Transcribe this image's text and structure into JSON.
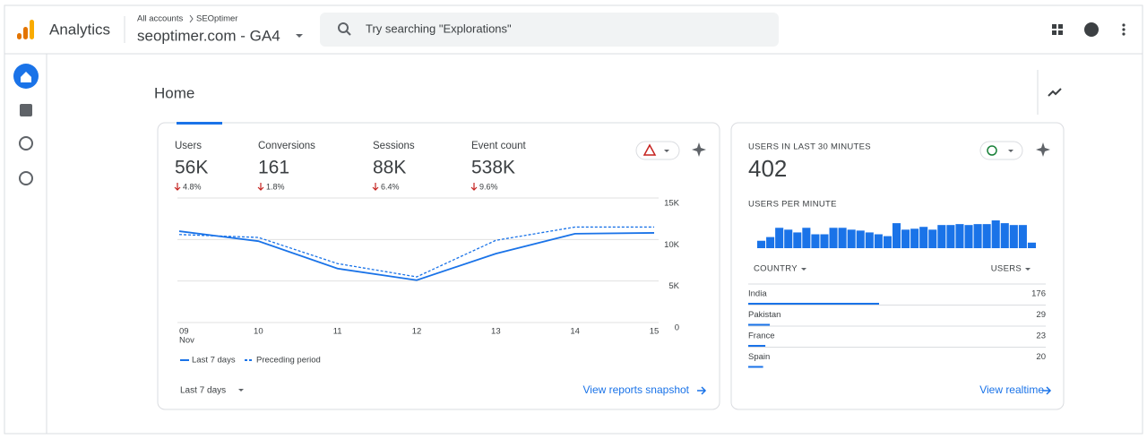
{
  "header": {
    "app_name": "Analytics",
    "breadcrumb": [
      "All accounts",
      "SEOptimer"
    ],
    "property": "seoptimer.com - GA4",
    "search_placeholder": "Try searching \"Explorations\""
  },
  "page_title": "Home",
  "overview": {
    "metrics": [
      {
        "label": "Users",
        "value": "56K",
        "change": "4.8%"
      },
      {
        "label": "Conversions",
        "value": "161",
        "change": "1.8%"
      },
      {
        "label": "Sessions",
        "value": "88K",
        "change": "6.4%"
      },
      {
        "label": "Event count",
        "value": "538K",
        "change": "9.6%"
      }
    ],
    "date_range": "Last 7 days",
    "link": "View reports snapshot"
  },
  "chart_data": {
    "type": "line",
    "categories": [
      "09",
      "10",
      "11",
      "12",
      "13",
      "14",
      "15"
    ],
    "x_sublabel": "Nov",
    "series": [
      {
        "name": "Last 7 days",
        "color": "#1a73e8",
        "dashed": false,
        "values": [
          11000,
          9800,
          6500,
          5100,
          8300,
          10700,
          10800
        ]
      },
      {
        "name": "Preceding period",
        "color": "#1a73e8",
        "dashed": true,
        "values": [
          10600,
          10250,
          7100,
          5500,
          9900,
          11500,
          11500
        ]
      }
    ],
    "ylim": [
      0,
      15000
    ],
    "yticks": [
      {
        "value": 15000,
        "label": "15K"
      },
      {
        "value": 10000,
        "label": "10K"
      },
      {
        "value": 5000,
        "label": "5K"
      },
      0
    ],
    "grid": true
  },
  "realtime": {
    "title": "USERS IN LAST 30 MINUTES",
    "value": 402,
    "per_minute_label": "USERS PER MINUTE",
    "per_minute": [
      8,
      12,
      22,
      20,
      17,
      22,
      15,
      15,
      22,
      22,
      20,
      19,
      17,
      15,
      13,
      27,
      20,
      21,
      23,
      20,
      25,
      25,
      26,
      25,
      26,
      26,
      30,
      27,
      25,
      25,
      6
    ],
    "table": {
      "columns": [
        "COUNTRY",
        "USERS"
      ],
      "rows": [
        [
          "India",
          176
        ],
        [
          "Pakistan",
          29
        ],
        [
          "France",
          23
        ],
        [
          "Spain",
          20
        ]
      ]
    },
    "link": "View realtime"
  }
}
